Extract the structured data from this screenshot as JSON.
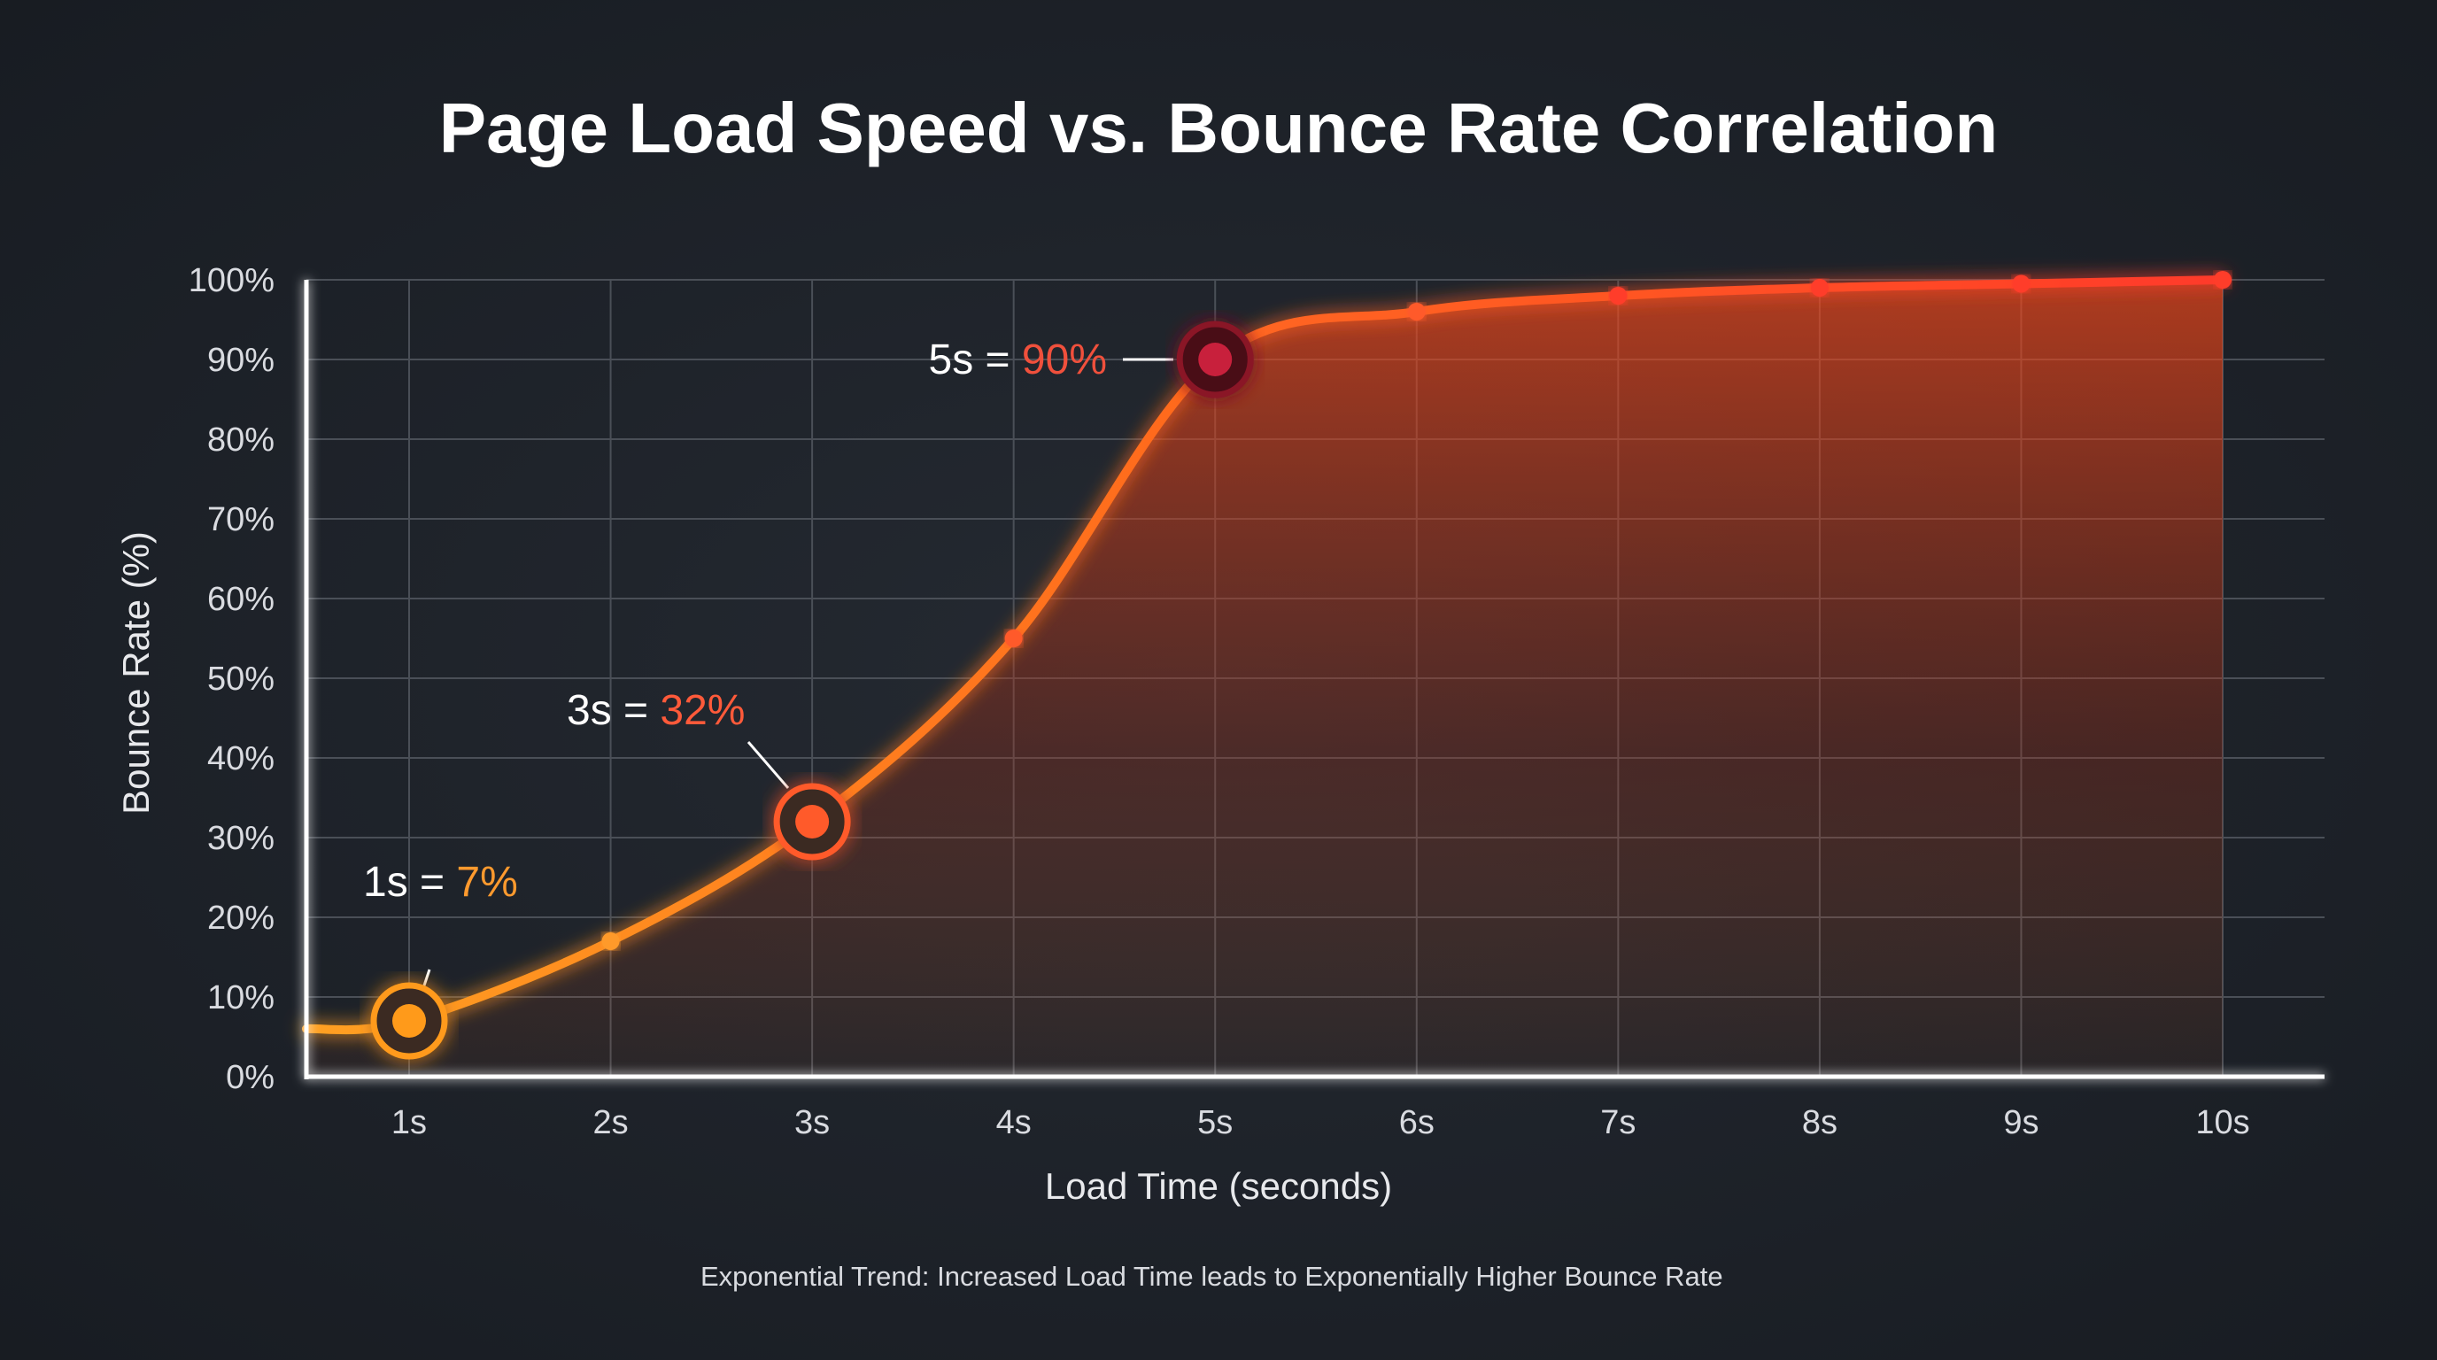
{
  "chart_data": {
    "type": "line",
    "title": "Page Load Speed vs. Bounce Rate Correlation",
    "xlabel": "Load Time (seconds)",
    "ylabel": "Bounce Rate (%)",
    "x": [
      1,
      2,
      3,
      4,
      5,
      6,
      7,
      8,
      9,
      10
    ],
    "x_tick_labels": [
      "1s",
      "2s",
      "3s",
      "4s",
      "5s",
      "6s",
      "7s",
      "8s",
      "9s",
      "10s"
    ],
    "y_tick_labels": [
      "0%",
      "10%",
      "20%",
      "30%",
      "40%",
      "50%",
      "60%",
      "70%",
      "80%",
      "90%",
      "100%"
    ],
    "xlim": [
      0.5,
      10.5
    ],
    "ylim": [
      0,
      100
    ],
    "grid": true,
    "series": [
      {
        "name": "Exponential Trend: Increased Load Time leads to Exponentially Higher Bounce Rate",
        "x": [
          0.5,
          1,
          2,
          3,
          4,
          5,
          6,
          7,
          8,
          9,
          10
        ],
        "values": [
          6,
          7,
          17,
          32,
          55,
          90,
          96,
          98,
          99,
          99.5,
          100
        ],
        "color": "#ff6a1f"
      }
    ],
    "annotations": [
      {
        "x": 1,
        "y": 7,
        "prefix": "1s = ",
        "value": "7%",
        "color": "#ff9a2e",
        "ring": "#ff9a1a"
      },
      {
        "x": 3,
        "y": 32,
        "prefix": "3s = ",
        "value": "32%",
        "color": "#ff5a3a",
        "ring": "#ff5a2a"
      },
      {
        "x": 5,
        "y": 90,
        "prefix": "5s = ",
        "value": "90%",
        "color": "#f0503c",
        "ring": "#8a1228"
      }
    ],
    "legend": {
      "position": "bottom-center",
      "label": "Exponential Trend: Increased Load Time leads to Exponentially Higher Bounce Rate",
      "color": "#ff5a2a"
    }
  },
  "colors": {
    "background": "#1b1f26",
    "grid": "#4a4f57",
    "axis": "#ffffff",
    "line_start": "#ffa020",
    "line_end": "#ff3a2a"
  }
}
